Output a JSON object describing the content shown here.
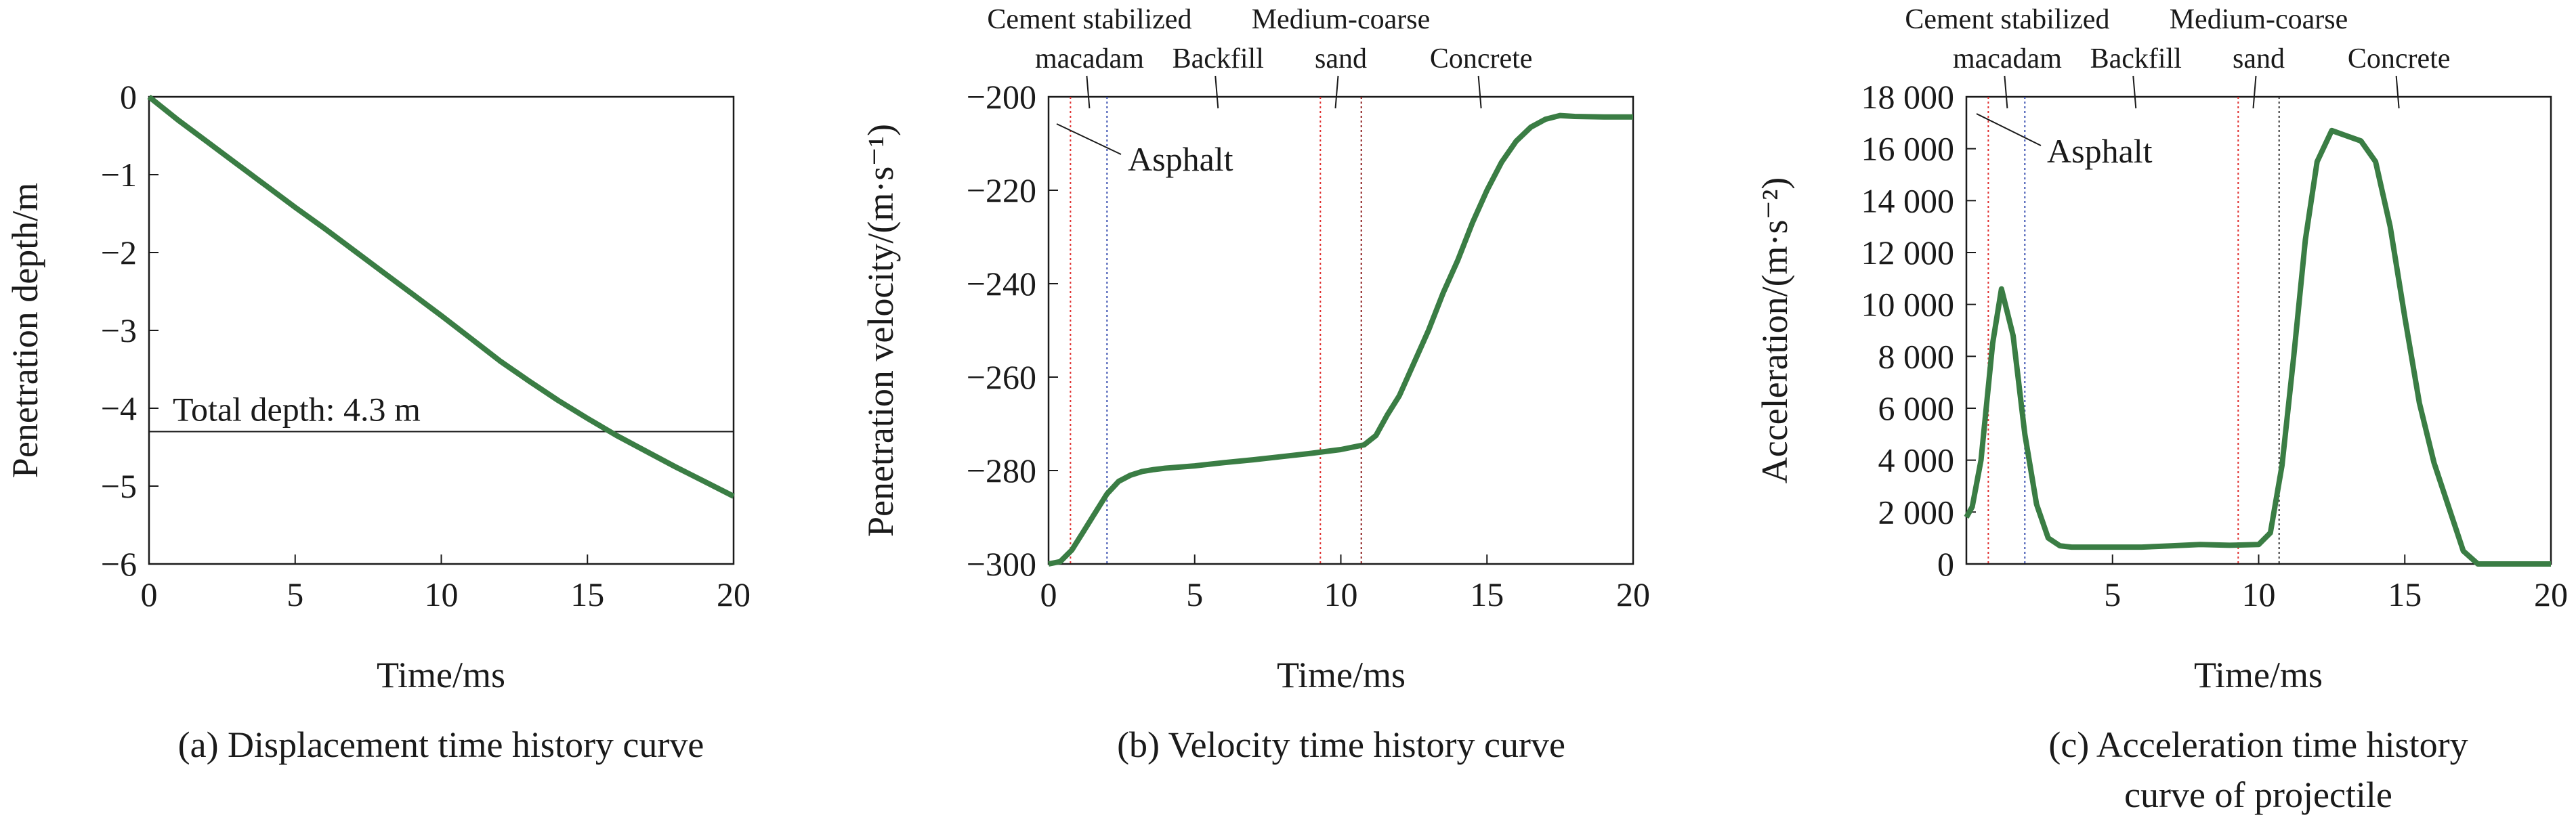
{
  "chart_data": [
    {
      "type": "line",
      "caption": "(a) Displacement time history curve",
      "xlabel": "Time/ms",
      "ylabel": "Penetration depth/m",
      "xlim": [
        0,
        20
      ],
      "ylim": [
        -6,
        0
      ],
      "xticks": [
        0,
        5,
        10,
        15,
        20
      ],
      "yticks": [
        0,
        -1,
        -2,
        -3,
        -4,
        -5,
        -6
      ],
      "ytick_labels": [
        "0",
        "−1",
        "−2",
        "−3",
        "−4",
        "−5",
        "−6"
      ],
      "series": [
        {
          "color": "#3a7d44",
          "x": [
            0,
            1,
            2,
            3,
            4,
            5,
            6,
            7,
            8,
            9,
            10,
            11,
            12,
            13,
            14,
            15,
            16,
            17,
            18,
            19,
            20
          ],
          "y": [
            0,
            -0.3,
            -0.58,
            -0.86,
            -1.14,
            -1.42,
            -1.69,
            -1.97,
            -2.25,
            -2.53,
            -2.81,
            -3.1,
            -3.39,
            -3.65,
            -3.9,
            -4.13,
            -4.35,
            -4.55,
            -4.75,
            -4.94,
            -5.13
          ]
        }
      ],
      "reference_line": {
        "y": -4.3,
        "label": "Total depth: 4.3 m"
      }
    },
    {
      "type": "line",
      "caption": "(b) Velocity time history curve",
      "xlabel": "Time/ms",
      "ylabel": "Penetration velocity/(m·s⁻¹)",
      "xlim": [
        0,
        20
      ],
      "ylim": [
        -300,
        -200
      ],
      "xticks": [
        0,
        5,
        10,
        15,
        20
      ],
      "yticks": [
        -200,
        -220,
        -240,
        -260,
        -280,
        -300
      ],
      "ytick_labels": [
        "−200",
        "−220",
        "−240",
        "−260",
        "−280",
        "−300"
      ],
      "series": [
        {
          "color": "#3a7d44",
          "x": [
            0,
            0.4,
            0.8,
            1.2,
            1.6,
            2.0,
            2.4,
            2.8,
            3.2,
            3.6,
            4,
            5,
            6,
            7,
            8,
            9,
            10,
            10.8,
            11.2,
            11.6,
            12,
            12.5,
            13,
            13.5,
            14,
            14.5,
            15,
            15.5,
            16,
            16.5,
            17,
            17.5,
            18,
            19,
            20
          ],
          "y": [
            -300,
            -299.5,
            -297,
            -293,
            -289,
            -285,
            -282.3,
            -281,
            -280.2,
            -279.8,
            -279.5,
            -279,
            -278.3,
            -277.7,
            -277,
            -276.3,
            -275.5,
            -274.5,
            -272.5,
            -268,
            -264,
            -257,
            -250,
            -242,
            -235,
            -227,
            -220,
            -214,
            -209.5,
            -206.5,
            -204.8,
            -204,
            -204.2,
            -204.3,
            -204.3
          ]
        }
      ],
      "boundaries": [
        {
          "x": 0.75,
          "color": "#e03030"
        },
        {
          "x": 2.0,
          "color": "#3a4fb0"
        },
        {
          "x": 9.3,
          "color": "#e03030"
        },
        {
          "x": 10.7,
          "color": "#8b1a1a"
        }
      ],
      "materials": [
        {
          "line1": "Cement stabilized",
          "line2": "macadam",
          "x": 1.4
        },
        {
          "line1": "",
          "line2": "Backfill",
          "x": 5.8
        },
        {
          "line1": "Medium-coarse",
          "line2": "sand",
          "x": 10.0
        },
        {
          "line1": "",
          "line2": "Concrete",
          "x": 14.8
        }
      ],
      "asphalt_label": "Asphalt"
    },
    {
      "type": "line",
      "caption_line1": "(c) Acceleration time history",
      "caption_line2": "curve of projectile",
      "xlabel": "Time/ms",
      "ylabel": "Acceleration/(m·s⁻²)",
      "xlim": [
        0,
        20
      ],
      "ylim": [
        0,
        18000
      ],
      "xticks": [
        5,
        10,
        15,
        20
      ],
      "yticks": [
        0,
        2000,
        4000,
        6000,
        8000,
        10000,
        12000,
        14000,
        16000,
        18000
      ],
      "ytick_labels": [
        "0",
        "2 000",
        "4 000",
        "6 000",
        "8 000",
        "10 000",
        "12 000",
        "14 000",
        "16 000",
        "18 000"
      ],
      "series": [
        {
          "color": "#3a7d44",
          "x": [
            0,
            0.2,
            0.5,
            0.9,
            1.2,
            1.6,
            2.0,
            2.4,
            2.8,
            3.2,
            3.6,
            4,
            5,
            6,
            7,
            8,
            9,
            10,
            10.4,
            10.8,
            11.2,
            11.6,
            12,
            12.5,
            13,
            13.5,
            14,
            14.5,
            15,
            15.5,
            16,
            16.5,
            17,
            17.5,
            18,
            19,
            20
          ],
          "y": [
            1800,
            2200,
            4000,
            8500,
            10600,
            8800,
            5000,
            2300,
            1000,
            700,
            650,
            650,
            650,
            650,
            700,
            750,
            720,
            750,
            1200,
            3800,
            8000,
            12500,
            15500,
            16700,
            16500,
            16300,
            15500,
            13000,
            9500,
            6200,
            3900,
            2200,
            500,
            0,
            0,
            0,
            0
          ]
        }
      ],
      "boundaries": [
        {
          "x": 0.75,
          "color": "#e03030"
        },
        {
          "x": 2.0,
          "color": "#3a4fb0"
        },
        {
          "x": 9.3,
          "color": "#e03030"
        },
        {
          "x": 10.7,
          "color": "#333333"
        }
      ],
      "materials": [
        {
          "line1": "Cement stabilized",
          "line2": "macadam",
          "x": 1.4
        },
        {
          "line1": "",
          "line2": "Backfill",
          "x": 5.8
        },
        {
          "line1": "Medium-coarse",
          "line2": "sand",
          "x": 10.0
        },
        {
          "line1": "",
          "line2": "Concrete",
          "x": 14.8
        }
      ],
      "asphalt_label": "Asphalt"
    }
  ]
}
